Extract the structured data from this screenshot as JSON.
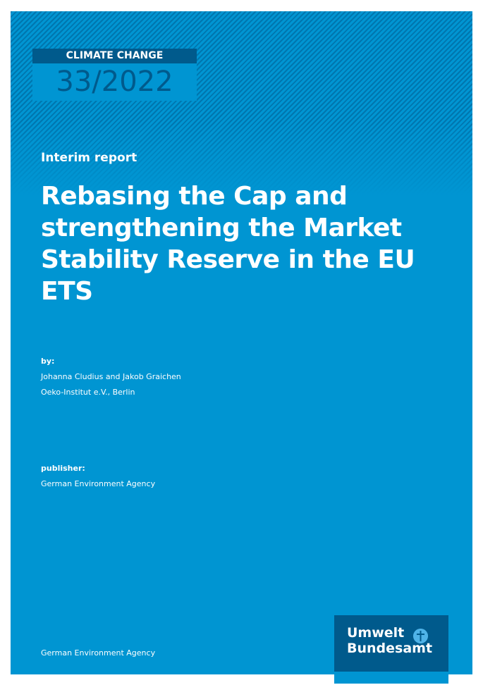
{
  "series": {
    "label": "CLIMATE CHANGE",
    "issue": "33/2022"
  },
  "report_type": "Interim report",
  "title": "Rebasing the Cap and strengthening the Market Stability Reserve in the EU ETS",
  "by_label": "by:",
  "authors": [
    "Johanna Cludius and Jakob Graichen",
    "Oeko-Institut e.V., Berlin"
  ],
  "publisher_label": "publisher:",
  "publisher": "German Environment Agency",
  "footer": "German Environment Agency",
  "logo": {
    "line1": "Umwelt",
    "line2": "Bundesamt"
  },
  "colors": {
    "background": "#0095d2",
    "dark": "#005a8c"
  }
}
